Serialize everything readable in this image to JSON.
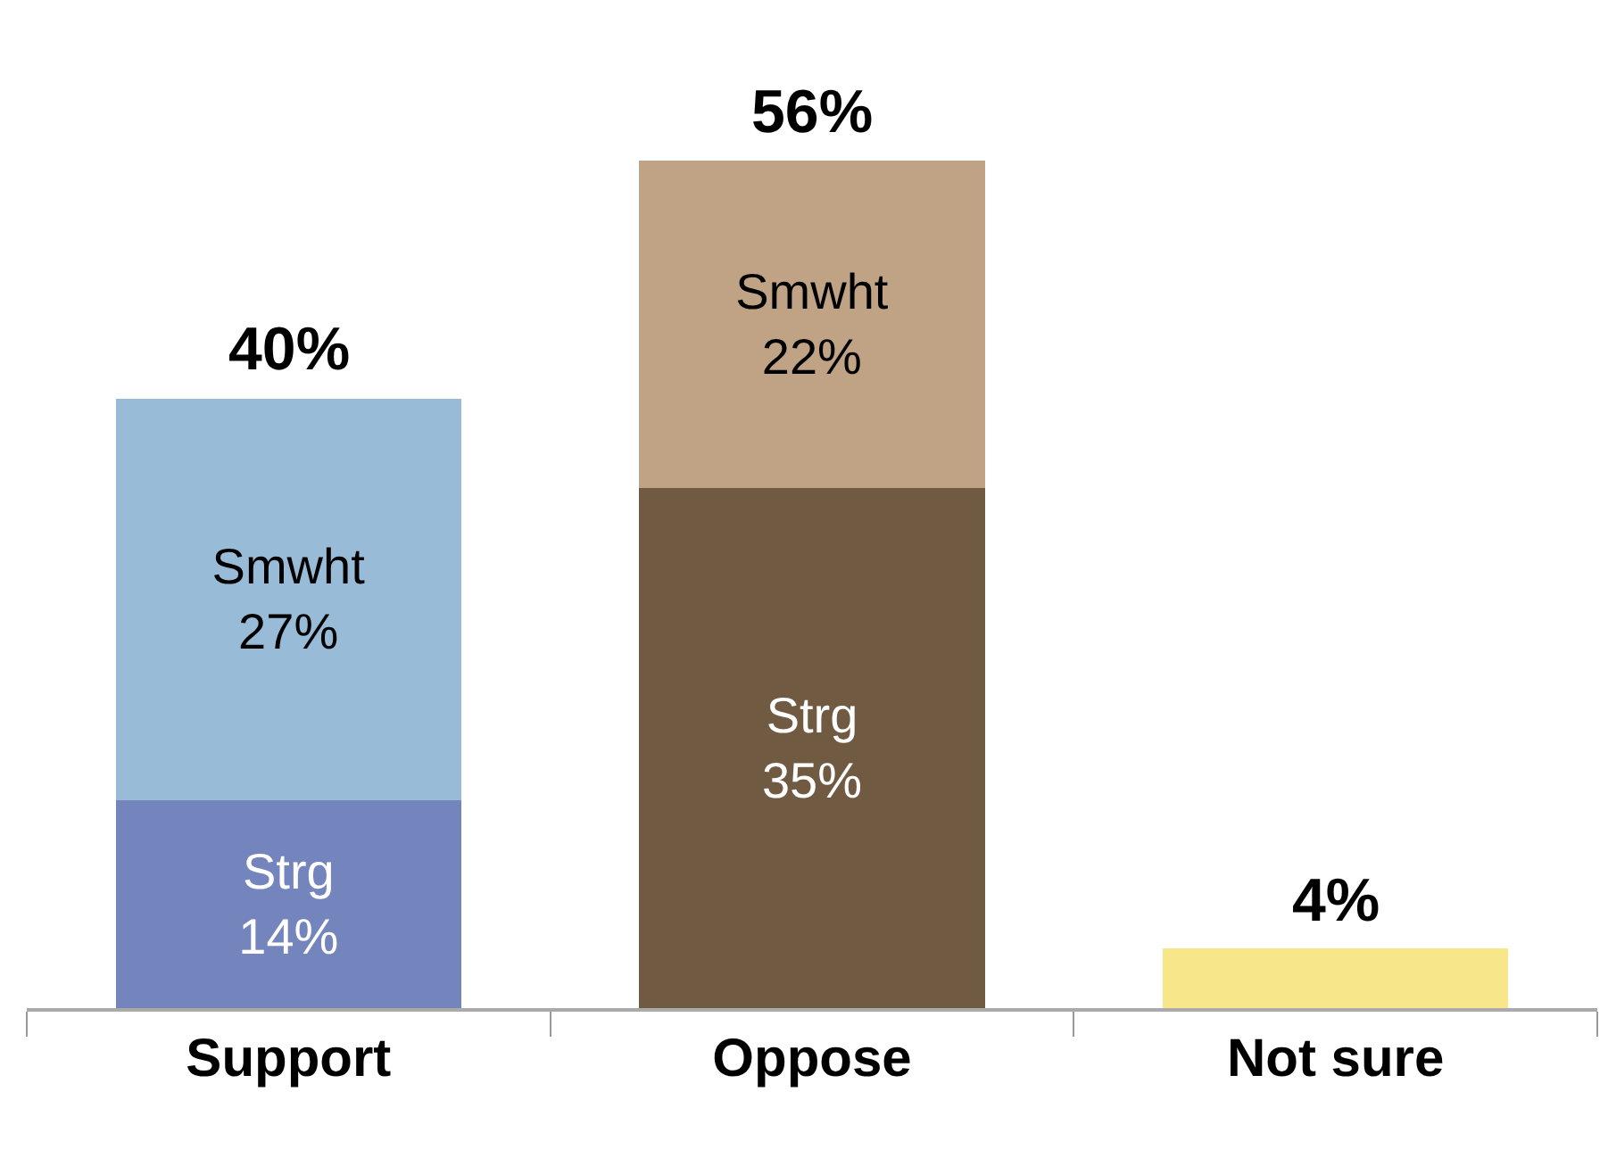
{
  "chart_data": {
    "type": "bar",
    "stacked": true,
    "categories": [
      "Support",
      "Oppose",
      "Not sure"
    ],
    "series": [
      {
        "values": [
          14,
          35,
          4
        ],
        "colors": [
          "#7484bd",
          "#705a42",
          "#f8e68a"
        ],
        "value_labels": [
          "Strg\n14%",
          "Strg\n35%",
          null
        ]
      },
      {
        "values": [
          27,
          22,
          null
        ],
        "colors": [
          "#98bcd8",
          "#c0a384",
          "#ffffff"
        ],
        "value_labels": [
          "Smwht\n27%",
          "Smwht\n22%",
          null
        ]
      }
    ],
    "totals": [
      "40%",
      "56%",
      "4%"
    ],
    "tick_labels": "x",
    "grid": false
  }
}
